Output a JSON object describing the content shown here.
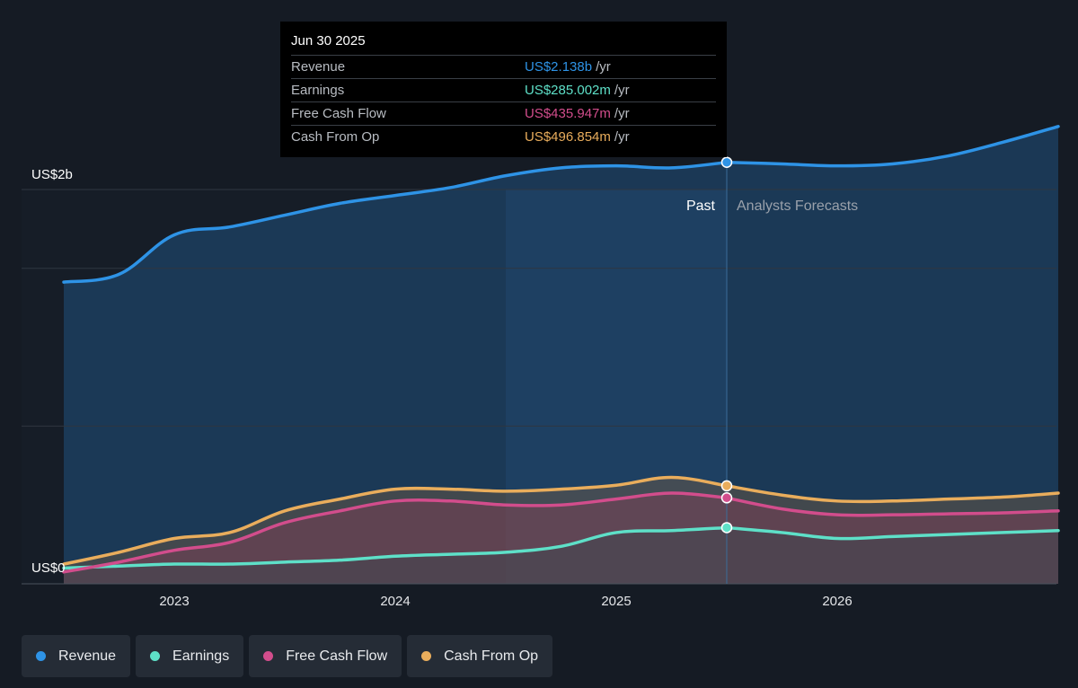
{
  "tooltip": {
    "date": "Jun 30 2025",
    "rows": [
      {
        "label": "Revenue",
        "value": "US$2.138b",
        "unit": "/yr",
        "color": "#2e93e6"
      },
      {
        "label": "Earnings",
        "value": "US$285.002m",
        "unit": "/yr",
        "color": "#5ee0c8"
      },
      {
        "label": "Free Cash Flow",
        "value": "US$435.947m",
        "unit": "/yr",
        "color": "#d24d8c"
      },
      {
        "label": "Cash From Op",
        "value": "US$496.854m",
        "unit": "/yr",
        "color": "#e9ad5c"
      }
    ]
  },
  "legend": [
    {
      "label": "Revenue",
      "color": "#2e93e6"
    },
    {
      "label": "Earnings",
      "color": "#5ee0c8"
    },
    {
      "label": "Free Cash Flow",
      "color": "#d24d8c"
    },
    {
      "label": "Cash From Op",
      "color": "#e9ad5c"
    }
  ],
  "chart_data": {
    "type": "line",
    "y_top_label": "US$2b",
    "y_bottom_label": "US$0",
    "ylim": [
      0,
      2.4
    ],
    "xlim": [
      2022.5,
      2027.0
    ],
    "xticks": [
      2023,
      2024,
      2025,
      2026
    ],
    "xtick_labels": [
      "2023",
      "2024",
      "2025",
      "2026"
    ],
    "past_label": "Past",
    "forecast_label": "Analysts Forecasts",
    "divider_x": 2025.5,
    "highlight_start_x": 2024.5,
    "grid": true,
    "series": [
      {
        "name": "Revenue",
        "color": "#2e93e6",
        "x": [
          2022.5,
          2022.75,
          2023.0,
          2023.25,
          2023.5,
          2023.75,
          2024.0,
          2024.25,
          2024.5,
          2024.75,
          2025.0,
          2025.25,
          2025.5,
          2025.75,
          2026.0,
          2026.25,
          2026.5,
          2026.75,
          2027.0
        ],
        "values": [
          1.53,
          1.57,
          1.77,
          1.81,
          1.87,
          1.93,
          1.97,
          2.01,
          2.07,
          2.11,
          2.12,
          2.11,
          2.138,
          2.13,
          2.12,
          2.13,
          2.17,
          2.24,
          2.32
        ]
      },
      {
        "name": "Earnings",
        "color": "#5ee0c8",
        "x": [
          2022.5,
          2022.75,
          2023.0,
          2023.25,
          2023.5,
          2023.75,
          2024.0,
          2024.25,
          2024.5,
          2024.75,
          2025.0,
          2025.25,
          2025.5,
          2025.75,
          2026.0,
          2026.25,
          2026.5,
          2026.75,
          2027.0
        ],
        "values": [
          0.08,
          0.09,
          0.1,
          0.1,
          0.11,
          0.12,
          0.14,
          0.15,
          0.16,
          0.19,
          0.26,
          0.27,
          0.285,
          0.26,
          0.23,
          0.24,
          0.25,
          0.26,
          0.27
        ]
      },
      {
        "name": "Free Cash Flow",
        "color": "#d24d8c",
        "x": [
          2022.5,
          2022.75,
          2023.0,
          2023.25,
          2023.5,
          2023.75,
          2024.0,
          2024.25,
          2024.5,
          2024.75,
          2025.0,
          2025.25,
          2025.5,
          2025.75,
          2026.0,
          2026.25,
          2026.5,
          2026.75,
          2027.0
        ],
        "values": [
          0.06,
          0.11,
          0.17,
          0.21,
          0.31,
          0.37,
          0.42,
          0.42,
          0.4,
          0.4,
          0.43,
          0.46,
          0.436,
          0.38,
          0.35,
          0.35,
          0.355,
          0.36,
          0.37
        ]
      },
      {
        "name": "Cash From Op",
        "color": "#e9ad5c",
        "x": [
          2022.5,
          2022.75,
          2023.0,
          2023.25,
          2023.5,
          2023.75,
          2024.0,
          2024.25,
          2024.5,
          2024.75,
          2025.0,
          2025.25,
          2025.5,
          2025.75,
          2026.0,
          2026.25,
          2026.5,
          2026.75,
          2027.0
        ],
        "values": [
          0.1,
          0.16,
          0.23,
          0.26,
          0.37,
          0.43,
          0.48,
          0.48,
          0.47,
          0.48,
          0.5,
          0.54,
          0.497,
          0.45,
          0.42,
          0.42,
          0.43,
          0.44,
          0.46
        ]
      }
    ]
  }
}
